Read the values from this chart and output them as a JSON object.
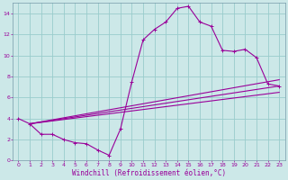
{
  "xlabel": "Windchill (Refroidissement éolien,°C)",
  "bg_color": "#cce8e8",
  "grid_color": "#99cccc",
  "line_color": "#990099",
  "spine_color": "#7799aa",
  "xlim": [
    -0.5,
    23.5
  ],
  "ylim": [
    0,
    15
  ],
  "xticks": [
    0,
    1,
    2,
    3,
    4,
    5,
    6,
    7,
    8,
    9,
    10,
    11,
    12,
    13,
    14,
    15,
    16,
    17,
    18,
    19,
    20,
    21,
    22,
    23
  ],
  "yticks": [
    0,
    2,
    4,
    6,
    8,
    10,
    12,
    14
  ],
  "main_line_x": [
    0,
    1,
    2,
    3,
    4,
    5,
    6,
    7,
    8,
    9,
    10,
    11,
    12,
    13,
    14,
    15,
    16,
    17,
    18,
    19,
    20,
    21,
    22,
    23
  ],
  "main_line_y": [
    4.0,
    3.5,
    2.5,
    2.5,
    2.0,
    1.7,
    1.6,
    1.0,
    0.5,
    3.0,
    7.5,
    11.5,
    12.5,
    13.2,
    14.5,
    14.7,
    13.2,
    12.8,
    10.5,
    10.4,
    10.6,
    9.8,
    7.3,
    7.1
  ],
  "reg_line1_x": [
    1,
    23
  ],
  "reg_line1_y": [
    3.5,
    7.1
  ],
  "reg_line2_x": [
    1,
    23
  ],
  "reg_line2_y": [
    3.5,
    6.5
  ],
  "reg_line3_x": [
    1,
    23
  ],
  "reg_line3_y": [
    3.5,
    7.7
  ],
  "xlabel_fontsize": 5.5,
  "tick_fontsize": 4.5,
  "linewidth": 0.8,
  "markersize": 2.5
}
